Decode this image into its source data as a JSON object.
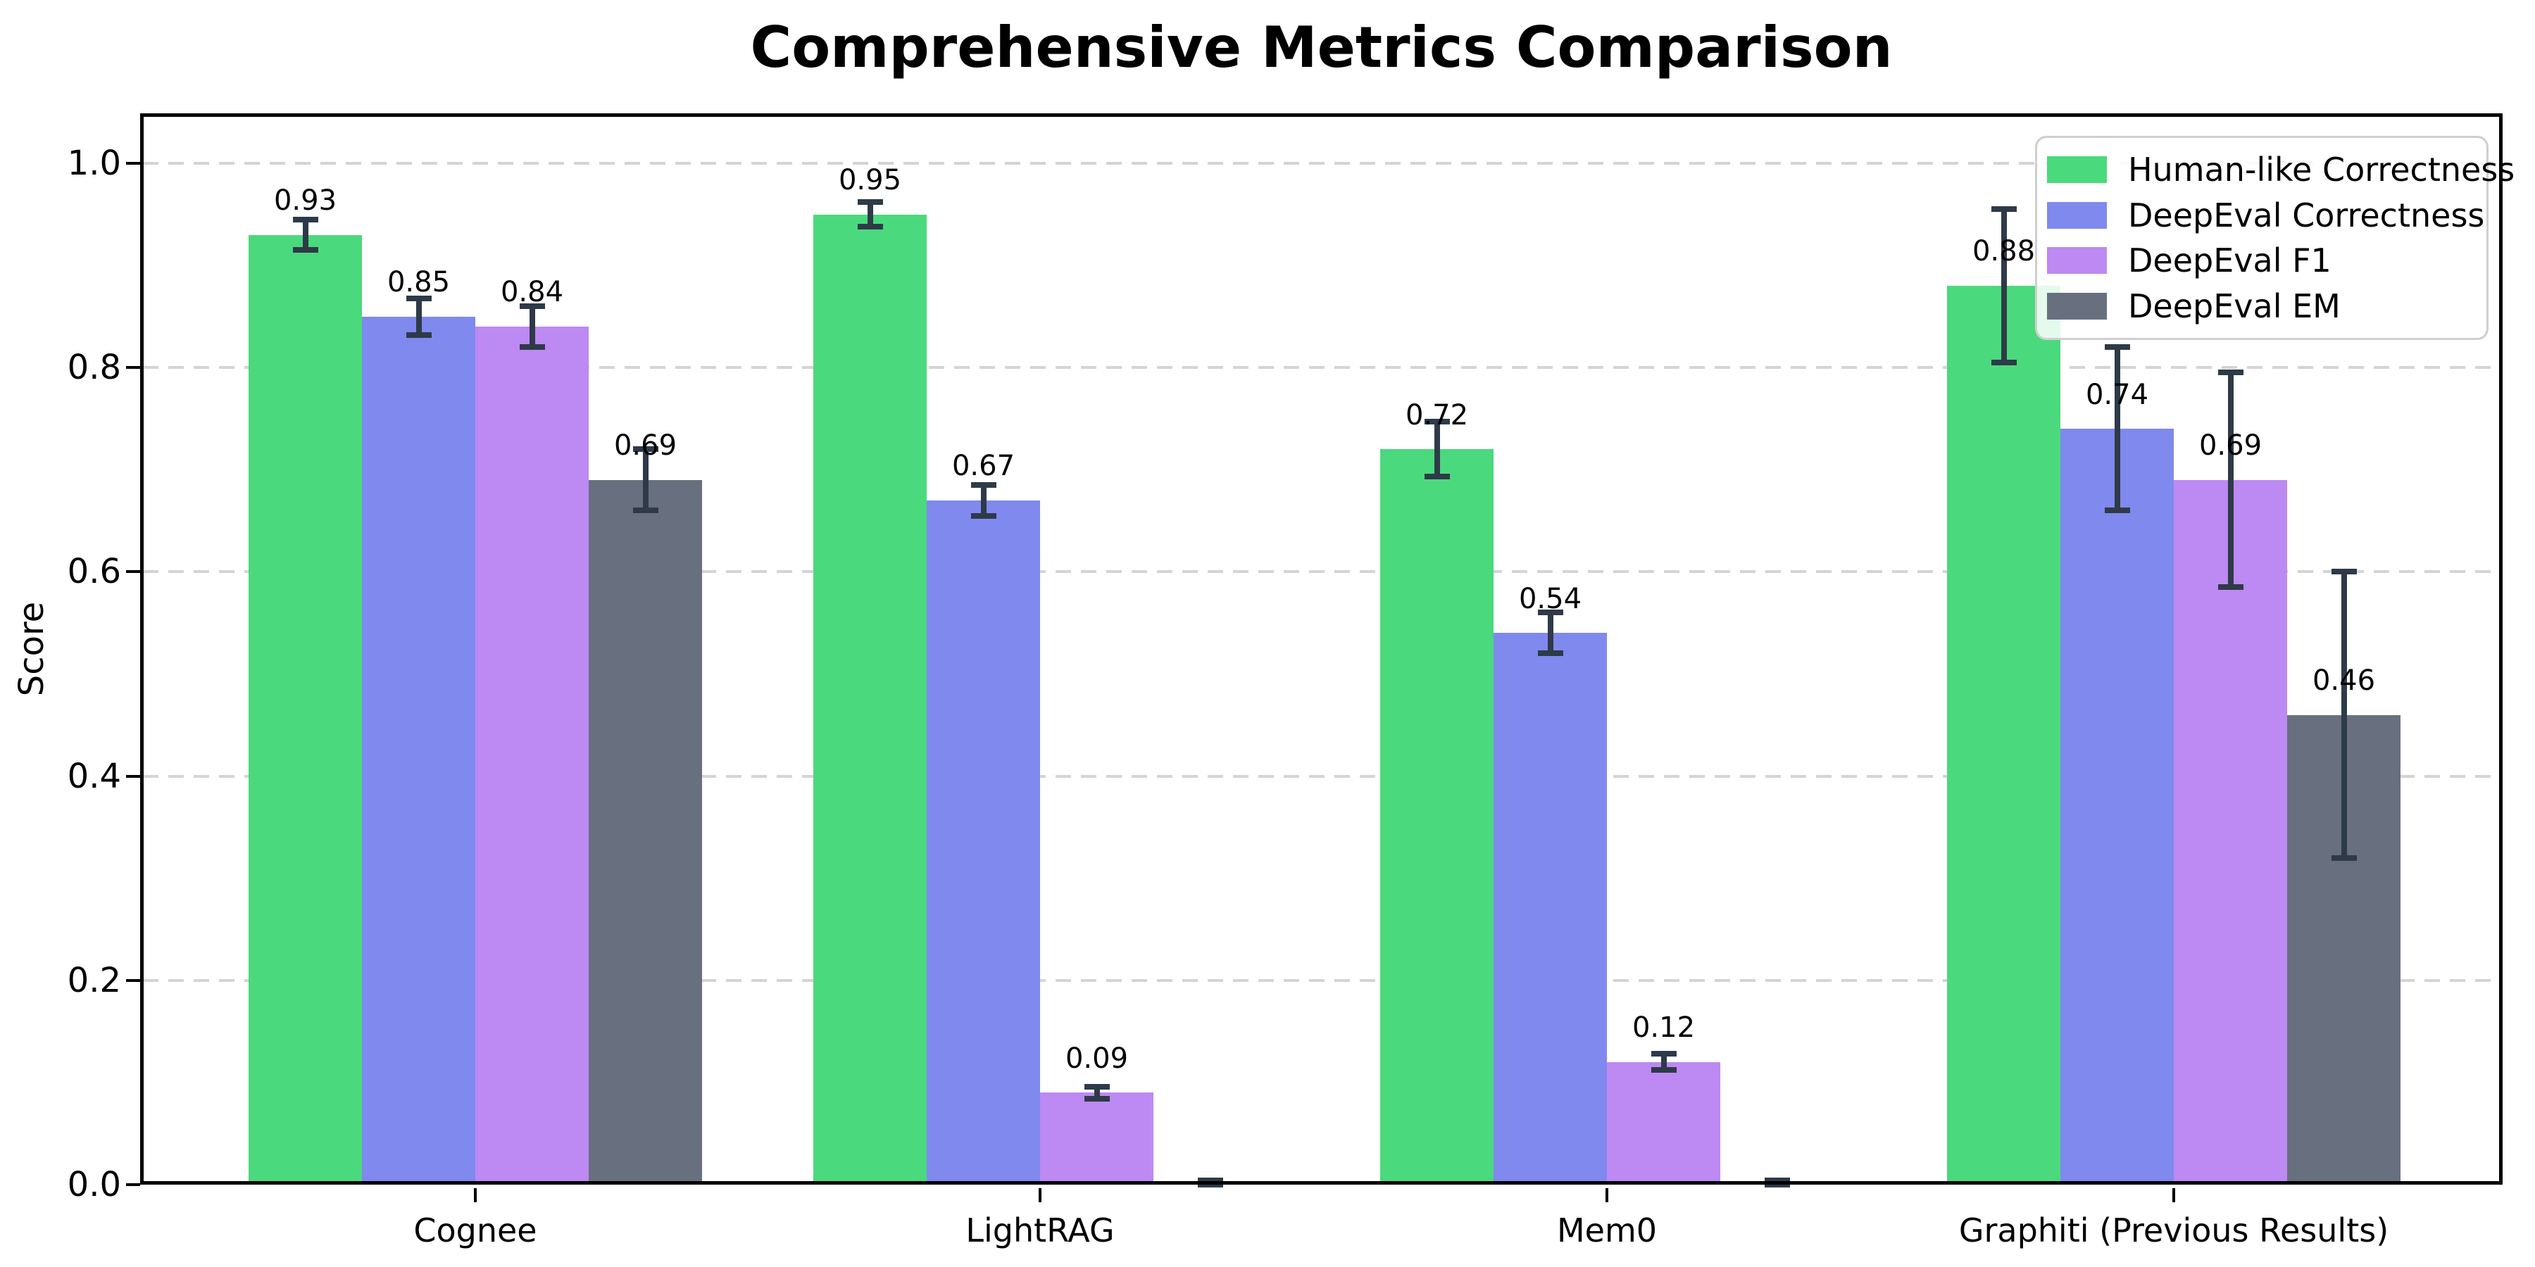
{
  "title": "Comprehensive Metrics Comparison",
  "chart_data": {
    "type": "bar",
    "title": "Comprehensive Metrics Comparison",
    "xlabel": "",
    "ylabel": "Score",
    "categories": [
      "Cognee",
      "LightRAG",
      "Mem0",
      "Graphiti (Previous Results)"
    ],
    "series": [
      {
        "name": "Human-like Correctness",
        "color": "#4bd97d",
        "values": [
          0.93,
          0.95,
          0.72,
          0.88
        ],
        "errors": [
          0.015,
          0.012,
          0.027,
          0.075
        ],
        "value_labels": [
          "0.93",
          "0.95",
          "0.72",
          "0.88"
        ]
      },
      {
        "name": "DeepEval Correctness",
        "color": "#8089ee",
        "values": [
          0.85,
          0.67,
          0.54,
          0.74
        ],
        "errors": [
          0.018,
          0.015,
          0.02,
          0.08
        ],
        "value_labels": [
          "0.85",
          "0.67",
          "0.54",
          "0.74"
        ]
      },
      {
        "name": "DeepEval F1",
        "color": "#bd89f2",
        "values": [
          0.84,
          0.09,
          0.12,
          0.69
        ],
        "errors": [
          0.02,
          0.006,
          0.008,
          0.105
        ],
        "value_labels": [
          "0.84",
          "0.09",
          "0.12",
          "0.69"
        ]
      },
      {
        "name": "DeepEval EM",
        "color": "#687080",
        "values": [
          0.69,
          0.0,
          0.0,
          0.46
        ],
        "errors": [
          0.03,
          0.004,
          0.004,
          0.14
        ],
        "value_labels": [
          "0.69",
          "",
          "",
          "0.46"
        ]
      }
    ],
    "ytick_labels": [
      "0.0",
      "0.2",
      "0.4",
      "0.6",
      "0.8",
      "1.0"
    ],
    "ytick_values": [
      0.0,
      0.2,
      0.4,
      0.6,
      0.8,
      1.0
    ],
    "ylim": [
      0.0,
      1.05
    ],
    "grid": "horizontal-dashed",
    "legend_position": "upper-right",
    "colors": {
      "error_bar": "#2e3a48",
      "grid_line": "#d4d4d4",
      "axis": "#000000",
      "background": "#ffffff"
    }
  }
}
